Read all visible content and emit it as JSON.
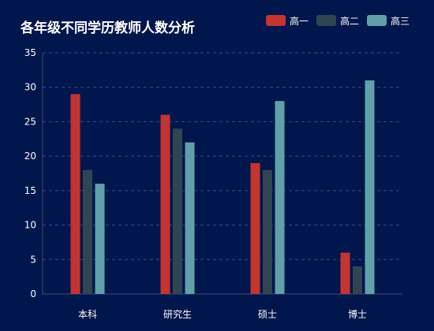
{
  "colors": {
    "background": "#01164c",
    "axis": "#3d4f7a",
    "grid": "#3a4e7e",
    "series": [
      "#c23531",
      "#2f4554",
      "#61a0a8"
    ]
  },
  "chart_data": {
    "type": "bar",
    "title": "各年级不同学历教师人数分析",
    "xlabel": "",
    "ylabel": "",
    "categories": [
      "本科",
      "研究生",
      "硕士",
      "博士"
    ],
    "series": [
      {
        "name": "高一",
        "values": [
          29,
          26,
          19,
          6
        ]
      },
      {
        "name": "高二",
        "values": [
          18,
          24,
          18,
          4
        ]
      },
      {
        "name": "高三",
        "values": [
          16,
          22,
          28,
          31
        ]
      }
    ],
    "ylim": [
      0,
      35
    ],
    "yticks": [
      0,
      5,
      10,
      15,
      20,
      25,
      30,
      35
    ],
    "grid": true,
    "legend_position": "top-right"
  }
}
